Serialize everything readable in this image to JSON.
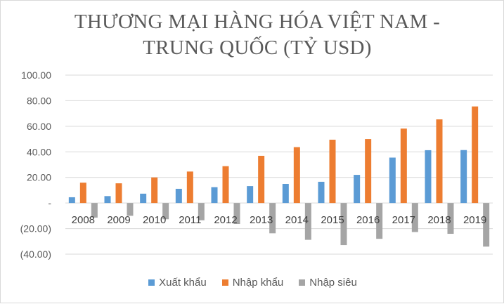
{
  "chart_data": {
    "type": "bar",
    "title_lines": [
      "THƯƠNG MẠI HÀNG HÓA VIỆT NAM -",
      "TRUNG QUỐC (TỶ USD)"
    ],
    "categories": [
      "2008",
      "2009",
      "2010",
      "2011",
      "2012",
      "2013",
      "2014",
      "2015",
      "2016",
      "2017",
      "2018",
      "2019"
    ],
    "series": [
      {
        "name": "Xuất khẩu",
        "color": "#5b9bd5",
        "values": [
          4.5,
          5.4,
          7.3,
          11.1,
          12.4,
          13.2,
          14.9,
          16.6,
          22.0,
          35.5,
          41.3,
          41.4
        ]
      },
      {
        "name": "Nhập khẩu",
        "color": "#ed7d31",
        "values": [
          15.9,
          15.4,
          20.0,
          24.6,
          28.8,
          36.9,
          43.7,
          49.5,
          50.0,
          58.2,
          65.4,
          75.5
        ]
      },
      {
        "name": "Nhập siêu",
        "color": "#a5a5a5",
        "values": [
          -11.4,
          -10.0,
          -12.7,
          -13.5,
          -16.4,
          -23.7,
          -28.8,
          -32.9,
          -28.0,
          -22.7,
          -24.1,
          -34.1
        ]
      }
    ],
    "ylim": [
      -40,
      100
    ],
    "yticks": [
      100,
      80,
      60,
      40,
      20,
      0,
      -20,
      -40
    ],
    "ytick_labels": [
      "100.00",
      "80.00",
      "60.00",
      "40.00",
      "20.00",
      "-",
      "(20.00)",
      "(40.00)"
    ],
    "grid": true,
    "legend_position": "bottom"
  }
}
